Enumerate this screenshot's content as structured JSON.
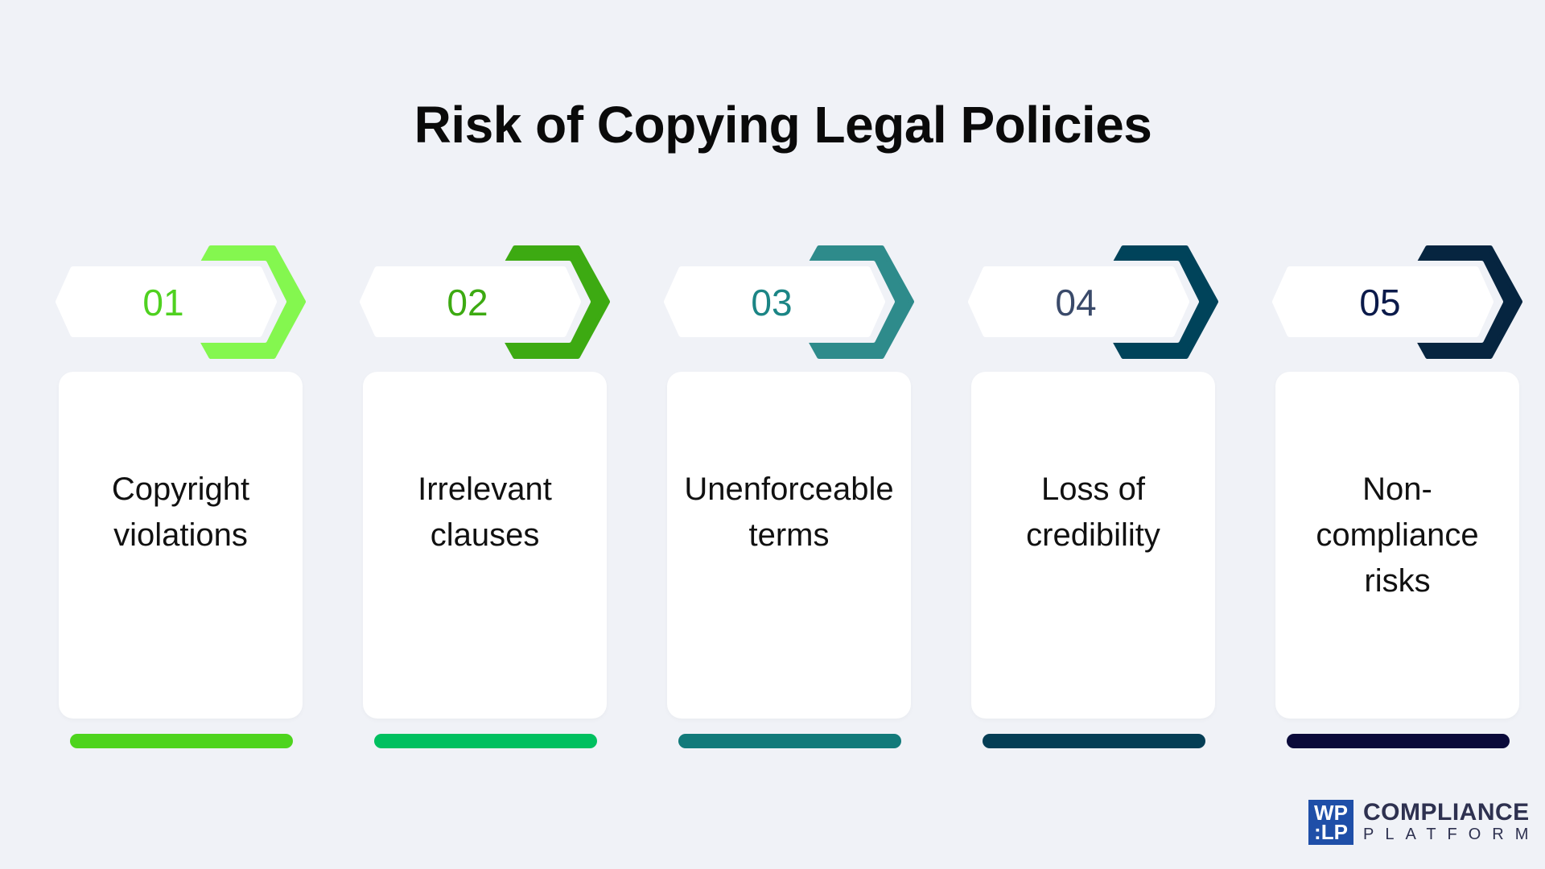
{
  "title": "Risk of Copying Legal Policies",
  "background_color": "#f0f2f7",
  "steps": [
    {
      "number": "01",
      "label": "Copyright violations",
      "chevron_color": "#84f74f",
      "number_color": "#4fd120",
      "bar_color": "#4ed41e"
    },
    {
      "number": "02",
      "label": "Irrelevant clauses",
      "chevron_color": "#3daa12",
      "number_color": "#3daa12",
      "bar_color": "#00c060"
    },
    {
      "number": "03",
      "label": "Unenforceable terms",
      "chevron_color": "#2e8b8b",
      "number_color": "#1b8585",
      "bar_color": "#127a7a"
    },
    {
      "number": "04",
      "label": "Loss of credibility",
      "chevron_color": "#00435a",
      "number_color": "#3a4a6a",
      "bar_color": "#053e55"
    },
    {
      "number": "05",
      "label": "Non-compliance risks",
      "chevron_color": "#062540",
      "number_color": "#0b1a4a",
      "bar_color": "#0a0a3a"
    }
  ],
  "logo": {
    "mark_line1": "WP",
    "mark_line2": ":LP",
    "name": "COMPLIANCE",
    "subname": "PLATFORM"
  }
}
